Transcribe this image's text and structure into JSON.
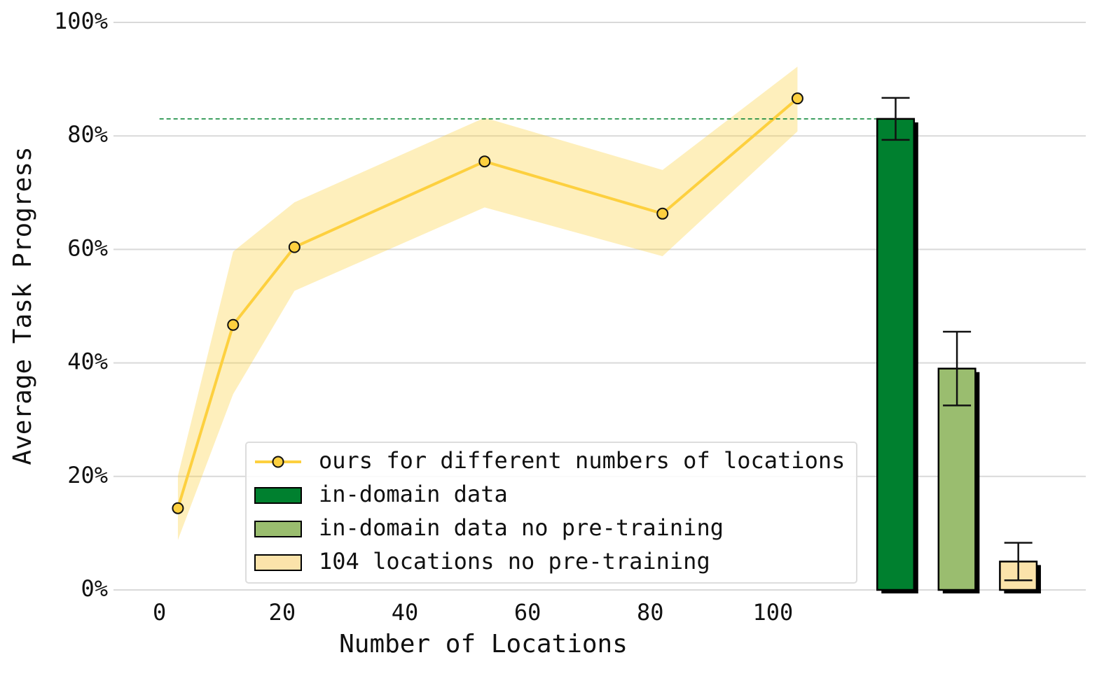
{
  "chart_data": {
    "type": "line",
    "x_label": "Number of Locations",
    "y_label": "Average Task Progress",
    "xlim": [
      -7.5,
      151
    ],
    "xticks": [
      0,
      20,
      40,
      60,
      80,
      100
    ],
    "ylim": [
      0,
      100
    ],
    "yticks": [
      {
        "value": 0,
        "label": "0%"
      },
      {
        "value": 20,
        "label": "20%"
      },
      {
        "value": 40,
        "label": "40%"
      },
      {
        "value": 60,
        "label": "60%"
      },
      {
        "value": 80,
        "label": "80%"
      },
      {
        "value": 100,
        "label": "100%"
      }
    ],
    "grid": true,
    "series": [
      {
        "name": "ours for different numbers of locations",
        "color": "#fdd03f",
        "x": [
          3,
          12,
          22,
          53,
          82,
          104
        ],
        "values": [
          14.4,
          46.7,
          60.4,
          75.5,
          66.3,
          86.6
        ],
        "lower": [
          8.8,
          34.5,
          52.7,
          67.4,
          58.8,
          80.8
        ],
        "upper": [
          20.1,
          59.6,
          68.3,
          83.2,
          74.0,
          92.2
        ]
      }
    ],
    "bars": [
      {
        "name": "in-domain data",
        "color": "#00802f",
        "x": 120,
        "value": 83.0,
        "error": 3.7
      },
      {
        "name": "in-domain data no pre-training",
        "color": "#9abd6f",
        "x": 130,
        "value": 39.0,
        "error": 6.5
      },
      {
        "name": "104 locations no pre-training",
        "color": "#fbe3aa",
        "x": 140,
        "value": 5.0,
        "error": 3.3
      }
    ],
    "bar_width": 6
  }
}
